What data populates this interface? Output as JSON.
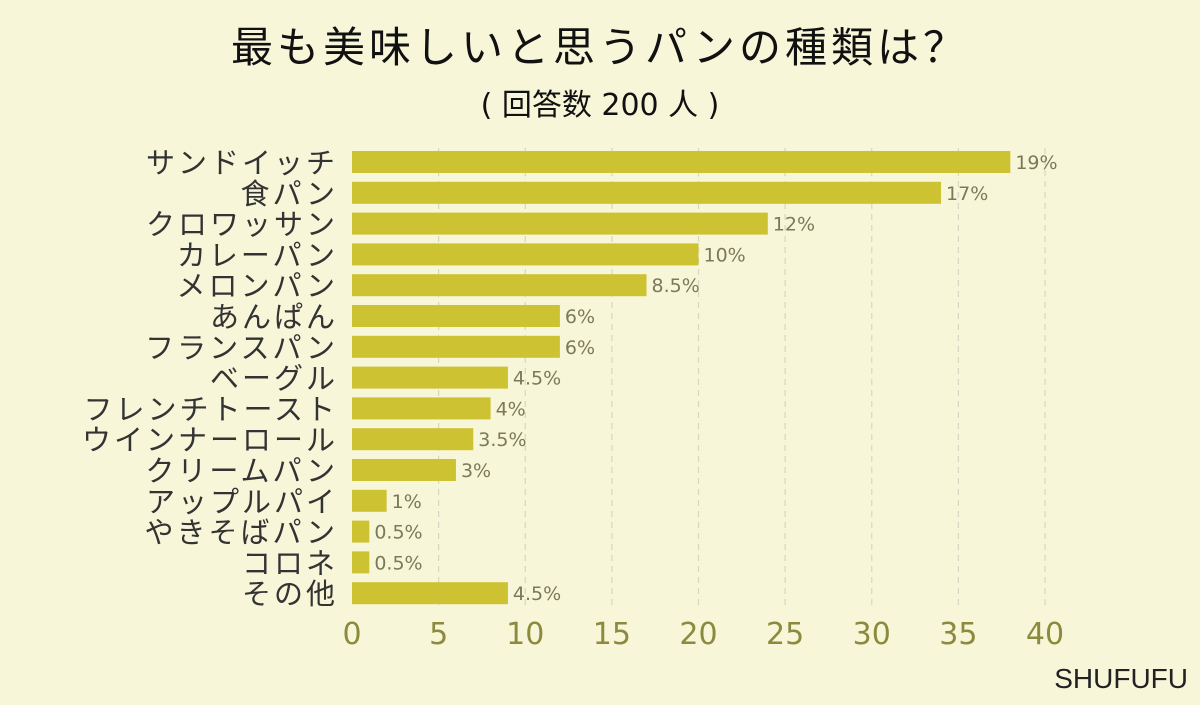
{
  "chart_data": {
    "type": "bar",
    "orientation": "horizontal",
    "title": "最も美味しいと思うパンの種類は？",
    "subtitle": "( 回答数 200 人 )",
    "categories": [
      "サンドイッチ",
      "食パン",
      "クロワッサン",
      "カレーパン",
      "メロンパン",
      "あんぱん",
      "フランスパン",
      "ベーグル",
      "フレンチトースト",
      "ウインナーロール",
      "クリームパン",
      "アップルパイ",
      "やきそばパン",
      "コロネ",
      "その他"
    ],
    "values": [
      38,
      34,
      24,
      20,
      17,
      12,
      12,
      9,
      8,
      7,
      6,
      2,
      1,
      1,
      9
    ],
    "data_labels": [
      "19%",
      "17%",
      "12%",
      "10%",
      "8.5%",
      "6%",
      "6%",
      "4.5%",
      "4%",
      "3.5%",
      "3%",
      "1%",
      "0.5%",
      "0.5%",
      "4.5%"
    ],
    "xlim": [
      0,
      40
    ],
    "xticks": [
      0,
      5,
      10,
      15,
      20,
      25,
      30,
      35,
      40
    ],
    "grid": "vertical dashed",
    "bar_color": "#cdc232"
  },
  "brand": "SHUFUFU"
}
